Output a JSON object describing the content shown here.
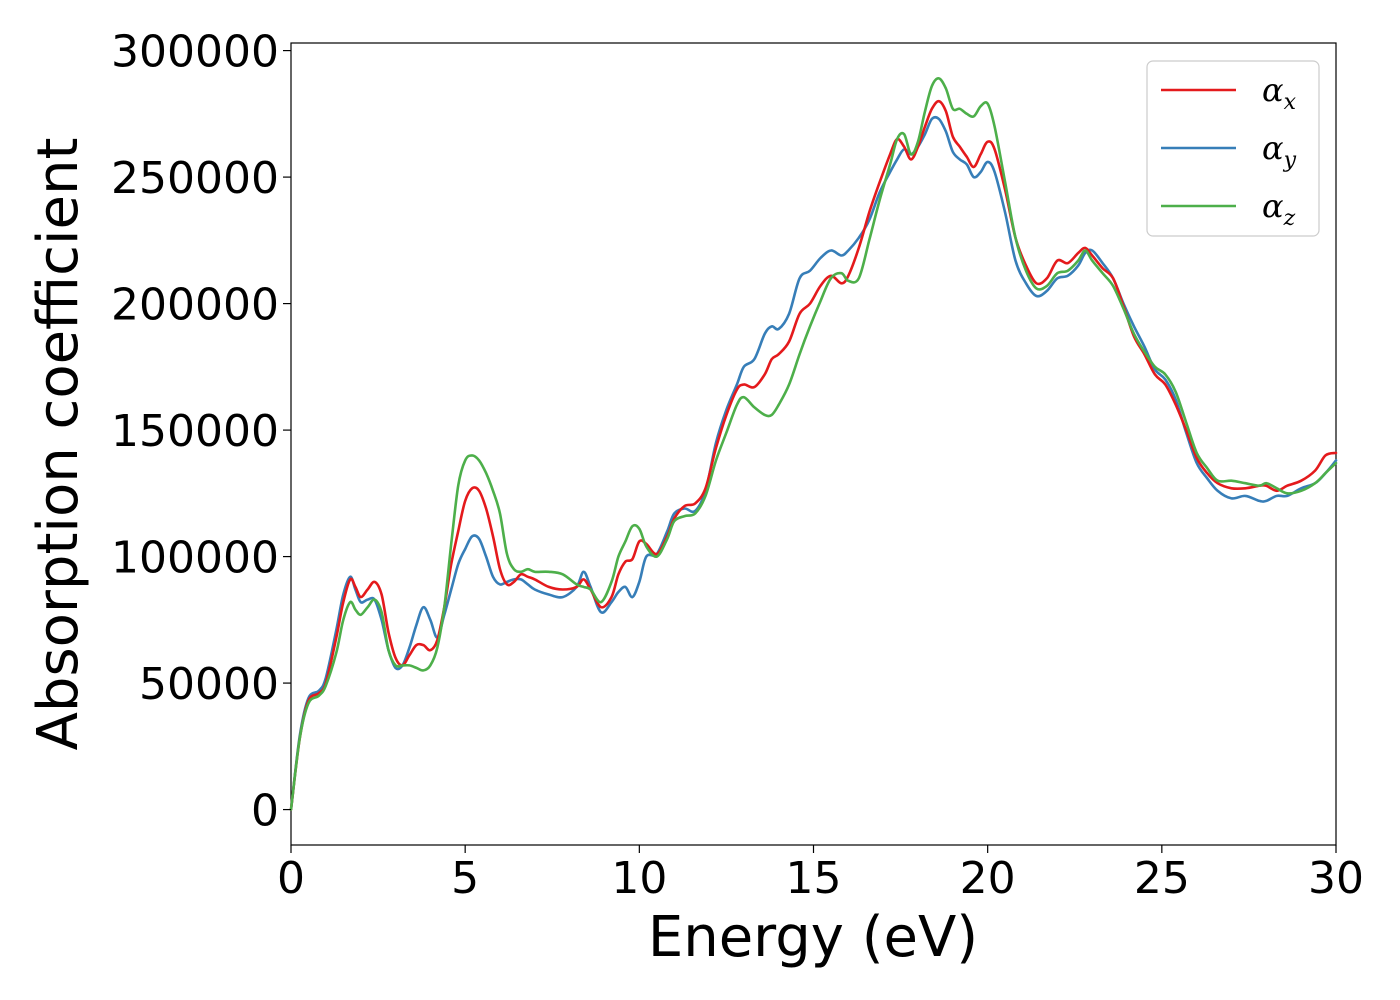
{
  "chart_data": {
    "type": "line",
    "xlabel": "Energy (eV)",
    "ylabel": "Absorption coefficient",
    "xlim": [
      0,
      30
    ],
    "ylim": [
      -14000,
      303000
    ],
    "xticks": [
      0,
      5,
      10,
      15,
      20,
      25,
      30
    ],
    "yticks": [
      0,
      50000,
      100000,
      150000,
      200000,
      250000,
      300000
    ],
    "grid": false,
    "legend_position": "top-right",
    "x": [
      0,
      0.25,
      0.5,
      0.8,
      1.0,
      1.3,
      1.5,
      1.7,
      1.85,
      2.0,
      2.2,
      2.4,
      2.6,
      2.8,
      3.0,
      3.2,
      3.4,
      3.6,
      3.8,
      4.0,
      4.2,
      4.4,
      4.6,
      4.8,
      5.0,
      5.2,
      5.4,
      5.6,
      5.8,
      6.0,
      6.2,
      6.4,
      6.6,
      6.8,
      7.0,
      7.4,
      7.8,
      8.2,
      8.4,
      8.6,
      8.9,
      9.2,
      9.4,
      9.6,
      9.8,
      10.0,
      10.2,
      10.5,
      10.8,
      11.0,
      11.3,
      11.6,
      11.9,
      12.2,
      12.5,
      12.8,
      13.0,
      13.3,
      13.6,
      13.8,
      14.0,
      14.3,
      14.6,
      14.9,
      15.2,
      15.5,
      15.8,
      16.0,
      16.3,
      16.6,
      16.9,
      17.2,
      17.4,
      17.6,
      17.8,
      18.0,
      18.2,
      18.4,
      18.6,
      18.8,
      19.0,
      19.2,
      19.4,
      19.6,
      19.8,
      20.0,
      20.2,
      20.5,
      20.8,
      21.1,
      21.4,
      21.7,
      22.0,
      22.3,
      22.6,
      22.8,
      23.0,
      23.3,
      23.6,
      23.9,
      24.2,
      24.5,
      24.8,
      25.1,
      25.4,
      25.7,
      26.0,
      26.3,
      26.6,
      27.0,
      27.4,
      27.8,
      28.0,
      28.3,
      28.6,
      29.0,
      29.4,
      29.7,
      30.0
    ],
    "series": [
      {
        "name": "αx",
        "color": "#e41a1c",
        "values": [
          0,
          28000,
          43000,
          46000,
          50000,
          68000,
          82000,
          91000,
          88000,
          84000,
          87000,
          90000,
          85000,
          70000,
          60000,
          57000,
          61000,
          65000,
          65000,
          63000,
          67000,
          80000,
          97000,
          110000,
          122000,
          127000,
          126000,
          119000,
          108000,
          95000,
          89000,
          90000,
          93000,
          92000,
          91000,
          88000,
          87000,
          88000,
          91000,
          87000,
          80000,
          84000,
          93000,
          98000,
          99000,
          106000,
          105000,
          101000,
          108000,
          115000,
          120000,
          121000,
          127000,
          143000,
          156000,
          166000,
          168000,
          167000,
          172000,
          178000,
          180000,
          185000,
          196000,
          200000,
          207000,
          211000,
          208000,
          211000,
          222000,
          236000,
          248000,
          259000,
          265000,
          262000,
          257000,
          262000,
          270000,
          277000,
          280000,
          276000,
          266000,
          262000,
          258000,
          254000,
          259000,
          264000,
          261000,
          245000,
          226000,
          215000,
          208000,
          210000,
          217000,
          216000,
          220000,
          222000,
          219000,
          214000,
          210000,
          199000,
          187000,
          180000,
          172000,
          168000,
          160000,
          150000,
          139000,
          133000,
          129000,
          127000,
          127000,
          128000,
          128000,
          126000,
          128000,
          130000,
          134000,
          140000,
          141000
        ]
      },
      {
        "name": "αy",
        "color": "#377eb8",
        "values": [
          0,
          29000,
          44000,
          47000,
          52000,
          71000,
          85000,
          92000,
          87000,
          82000,
          83000,
          83000,
          75000,
          63000,
          56000,
          57000,
          64000,
          73000,
          80000,
          75000,
          68000,
          77000,
          87000,
          97000,
          103000,
          108000,
          107000,
          100000,
          92000,
          89000,
          90000,
          91000,
          91000,
          89000,
          87000,
          85000,
          84000,
          88000,
          94000,
          88000,
          78000,
          82000,
          86000,
          88000,
          84000,
          90000,
          100000,
          101000,
          110000,
          117000,
          119000,
          118000,
          126000,
          145000,
          158000,
          168000,
          175000,
          178000,
          188000,
          191000,
          190000,
          196000,
          210000,
          213000,
          218000,
          221000,
          219000,
          221000,
          226000,
          233000,
          244000,
          252000,
          257000,
          261000,
          259000,
          262000,
          267000,
          273000,
          273000,
          268000,
          260000,
          257000,
          255000,
          250000,
          252000,
          256000,
          252000,
          236000,
          217000,
          208000,
          203000,
          205000,
          210000,
          211000,
          215000,
          220000,
          221000,
          216000,
          210000,
          200000,
          191000,
          183000,
          174000,
          170000,
          162000,
          149000,
          137000,
          131000,
          126000,
          123000,
          124000,
          122000,
          122000,
          124000,
          124000,
          127000,
          129000,
          133000,
          138000
        ]
      },
      {
        "name": "αz",
        "color": "#4daf4a",
        "values": [
          0,
          28000,
          42000,
          45000,
          49000,
          62000,
          75000,
          82000,
          79000,
          77000,
          80000,
          83000,
          78000,
          63000,
          57000,
          57000,
          57000,
          56000,
          55000,
          57000,
          64000,
          80000,
          105000,
          128000,
          138000,
          140000,
          138000,
          133000,
          126000,
          117000,
          101000,
          95000,
          94000,
          95000,
          94000,
          94000,
          93000,
          89000,
          88000,
          87000,
          82000,
          90000,
          100000,
          106000,
          112000,
          111000,
          104000,
          100000,
          107000,
          114000,
          116000,
          117000,
          124000,
          138000,
          149000,
          160000,
          163000,
          159000,
          156000,
          156000,
          160000,
          168000,
          180000,
          191000,
          201000,
          210000,
          212000,
          209000,
          210000,
          225000,
          241000,
          255000,
          265000,
          267000,
          259000,
          264000,
          276000,
          286000,
          289000,
          285000,
          277000,
          277000,
          275000,
          274000,
          278000,
          279000,
          270000,
          248000,
          226000,
          213000,
          206000,
          207000,
          212000,
          213000,
          217000,
          221000,
          217000,
          212000,
          207000,
          198000,
          188000,
          181000,
          175000,
          172000,
          165000,
          153000,
          141000,
          135000,
          130000,
          130000,
          129000,
          128000,
          129000,
          127000,
          125000,
          126000,
          129000,
          133000,
          137000
        ]
      }
    ]
  }
}
